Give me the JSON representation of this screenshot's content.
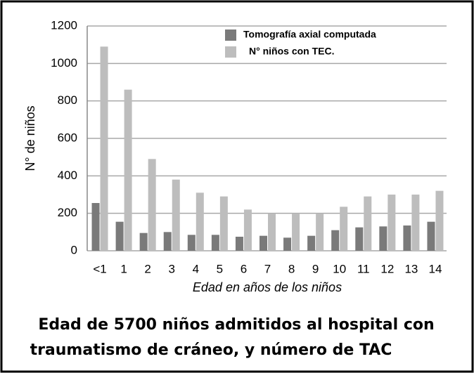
{
  "chart_data": {
    "type": "bar",
    "y_label": "N° de niños",
    "x_label": "Edad en años de los niños",
    "caption": [
      "Edad de 5700 niños admitidos al hospital con",
      "traumatismo de cráneo, y número de TAC"
    ],
    "categories": [
      "<1",
      "1",
      "2",
      "3",
      "4",
      "5",
      "6",
      "7",
      "8",
      "9",
      "10",
      "11",
      "12",
      "13",
      "14"
    ],
    "series": [
      {
        "name": "Tomografía axial computada",
        "color": "#7a7a7a",
        "values": [
          255,
          155,
          95,
          100,
          85,
          85,
          75,
          80,
          70,
          80,
          110,
          125,
          130,
          135,
          155
        ]
      },
      {
        "name": "N° niños con TEC.",
        "color": "#bdbdbd",
        "values": [
          1090,
          860,
          490,
          380,
          310,
          290,
          220,
          200,
          200,
          200,
          235,
          290,
          300,
          300,
          320
        ]
      }
    ],
    "ylim": [
      0,
      1200
    ],
    "yticks": [
      0,
      200,
      400,
      600,
      800,
      1000,
      1200
    ],
    "grid": true
  }
}
